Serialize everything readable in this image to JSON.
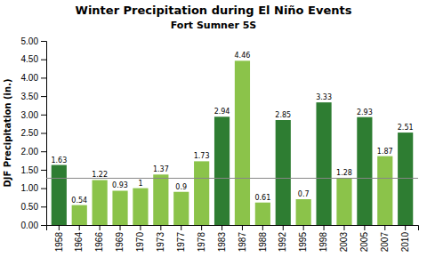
{
  "chart_data": {
    "type": "bar",
    "title": "Winter Precipitation during El Niño Events",
    "subtitle": "Fort Sumner 5S",
    "ylabel": "DJF Precipitation (in.)",
    "categories": [
      "1958",
      "1964",
      "1966",
      "1969",
      "1970",
      "1973",
      "1977",
      "1978",
      "1983",
      "1987",
      "1988",
      "1992",
      "1995",
      "1998",
      "2003",
      "2005",
      "2007",
      "2010"
    ],
    "values": [
      1.63,
      0.54,
      1.22,
      0.93,
      1.0,
      1.37,
      0.9,
      1.73,
      2.94,
      4.46,
      0.61,
      2.85,
      0.7,
      3.33,
      1.28,
      2.93,
      1.87,
      2.51
    ],
    "colors": [
      "#2e7d32",
      "#8bc34a",
      "#8bc34a",
      "#8bc34a",
      "#8bc34a",
      "#8bc34a",
      "#8bc34a",
      "#8bc34a",
      "#2e7d32",
      "#8bc34a",
      "#8bc34a",
      "#2e7d32",
      "#8bc34a",
      "#2e7d32",
      "#8bc34a",
      "#2e7d32",
      "#8bc34a",
      "#2e7d32"
    ],
    "ylim": [
      0.0,
      5.0
    ],
    "yticks": [
      {
        "value": 0.0,
        "label": "0.00"
      },
      {
        "value": 0.5,
        "label": "0.50"
      },
      {
        "value": 1.0,
        "label": "1.00"
      },
      {
        "value": 1.5,
        "label": "1.50"
      },
      {
        "value": 2.0,
        "label": "2.00"
      },
      {
        "value": 2.5,
        "label": "2.50"
      },
      {
        "value": 3.0,
        "label": "3.00"
      },
      {
        "value": 3.5,
        "label": "3.50"
      },
      {
        "value": 4.0,
        "label": "4.00"
      },
      {
        "value": 4.5,
        "label": "4.50"
      },
      {
        "value": 5.0,
        "label": "5.00"
      }
    ],
    "mean_line": 1.27,
    "data_labels": true,
    "grid": false
  }
}
